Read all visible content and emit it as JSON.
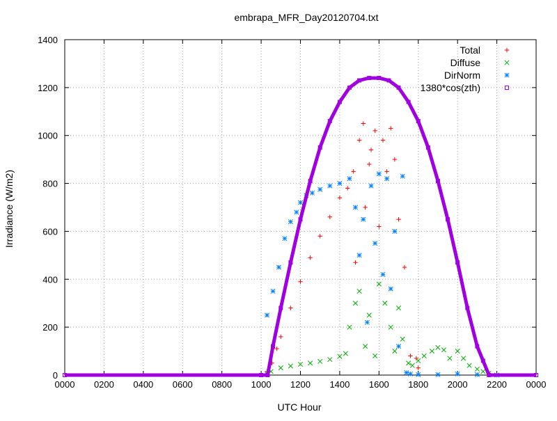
{
  "chart_data": {
    "type": "scatter",
    "title": "embrapa_MFR_Day20120704.txt",
    "xlabel": "UTC Hour",
    "ylabel": "Irradiance (W/m2)",
    "x_ticks": [
      "0000",
      "0200",
      "0400",
      "0600",
      "0800",
      "1000",
      "1200",
      "1400",
      "1600",
      "1800",
      "2000",
      "2200",
      "0000"
    ],
    "y_ticks": [
      "0",
      "200",
      "400",
      "600",
      "800",
      "1000",
      "1200",
      "1400"
    ],
    "xlim": [
      0,
      24
    ],
    "ylim": [
      0,
      1400
    ],
    "grid": true,
    "legend_position": "top-right",
    "series": [
      {
        "name": "Total",
        "marker": "+",
        "color": "#ff0000",
        "points": [
          [
            10.3,
            15
          ],
          [
            10.55,
            50
          ],
          [
            10.8,
            110
          ],
          [
            11.0,
            160
          ],
          [
            11.5,
            280
          ],
          [
            12.0,
            390
          ],
          [
            12.5,
            490
          ],
          [
            13.0,
            580
          ],
          [
            13.5,
            660
          ],
          [
            14.0,
            740
          ],
          [
            14.4,
            780
          ],
          [
            14.7,
            850
          ],
          [
            14.8,
            470
          ],
          [
            15.0,
            980
          ],
          [
            15.2,
            1050
          ],
          [
            15.3,
            700
          ],
          [
            15.5,
            880
          ],
          [
            15.6,
            940
          ],
          [
            15.8,
            1020
          ],
          [
            16.0,
            620
          ],
          [
            16.2,
            980
          ],
          [
            16.4,
            850
          ],
          [
            16.6,
            1030
          ],
          [
            16.8,
            900
          ],
          [
            17.0,
            650
          ],
          [
            17.3,
            450
          ],
          [
            17.6,
            80
          ],
          [
            17.9,
            70
          ],
          [
            18.0,
            30
          ]
        ]
      },
      {
        "name": "Diffuse",
        "marker": "x",
        "color": "#00aa00",
        "points": [
          [
            10.3,
            5
          ],
          [
            10.5,
            15
          ],
          [
            11.0,
            30
          ],
          [
            11.5,
            38
          ],
          [
            12.0,
            45
          ],
          [
            12.5,
            50
          ],
          [
            13.0,
            57
          ],
          [
            13.5,
            65
          ],
          [
            14.0,
            78
          ],
          [
            14.3,
            90
          ],
          [
            14.5,
            200
          ],
          [
            14.8,
            300
          ],
          [
            15.0,
            350
          ],
          [
            15.3,
            120
          ],
          [
            15.5,
            250
          ],
          [
            15.8,
            80
          ],
          [
            16.0,
            380
          ],
          [
            16.3,
            300
          ],
          [
            16.6,
            200
          ],
          [
            16.8,
            100
          ],
          [
            17.0,
            280
          ],
          [
            17.2,
            150
          ],
          [
            17.5,
            50
          ],
          [
            17.7,
            40
          ],
          [
            18.0,
            60
          ],
          [
            18.3,
            80
          ],
          [
            18.7,
            100
          ],
          [
            19.0,
            115
          ],
          [
            19.3,
            105
          ],
          [
            19.6,
            70
          ],
          [
            20.0,
            100
          ],
          [
            20.3,
            70
          ],
          [
            20.6,
            40
          ],
          [
            21.0,
            25
          ],
          [
            21.3,
            15
          ],
          [
            21.6,
            8
          ],
          [
            22.0,
            0
          ]
        ]
      },
      {
        "name": "DirNorm",
        "marker": "*",
        "color": "#0080ff",
        "points": [
          [
            10.3,
            250
          ],
          [
            10.6,
            350
          ],
          [
            10.9,
            450
          ],
          [
            11.2,
            570
          ],
          [
            11.5,
            640
          ],
          [
            11.8,
            680
          ],
          [
            12.0,
            720
          ],
          [
            12.3,
            750
          ],
          [
            12.6,
            760
          ],
          [
            13.0,
            775
          ],
          [
            13.5,
            790
          ],
          [
            14.0,
            800
          ],
          [
            14.5,
            820
          ],
          [
            14.8,
            700
          ],
          [
            15.0,
            500
          ],
          [
            15.2,
            650
          ],
          [
            15.4,
            220
          ],
          [
            15.6,
            790
          ],
          [
            15.8,
            550
          ],
          [
            16.0,
            840
          ],
          [
            16.2,
            420
          ],
          [
            16.4,
            820
          ],
          [
            16.6,
            360
          ],
          [
            16.8,
            600
          ],
          [
            17.0,
            120
          ],
          [
            17.2,
            830
          ],
          [
            17.4,
            10
          ],
          [
            17.6,
            5
          ],
          [
            18.0,
            2
          ],
          [
            19.0,
            2
          ],
          [
            20.0,
            5
          ],
          [
            21.0,
            2
          ],
          [
            22.0,
            0
          ]
        ]
      },
      {
        "name": "1380*cos(zth)",
        "marker": "square",
        "color": "#a000e0",
        "points": [
          [
            0,
            0
          ],
          [
            10.0,
            0
          ],
          [
            10.33,
            0
          ],
          [
            10.6,
            120
          ],
          [
            11.0,
            280
          ],
          [
            11.5,
            470
          ],
          [
            12.0,
            650
          ],
          [
            12.5,
            810
          ],
          [
            13.0,
            950
          ],
          [
            13.5,
            1060
          ],
          [
            14.0,
            1140
          ],
          [
            14.5,
            1200
          ],
          [
            15.0,
            1230
          ],
          [
            15.5,
            1240
          ],
          [
            16.0,
            1240
          ],
          [
            16.5,
            1230
          ],
          [
            17.0,
            1200
          ],
          [
            17.5,
            1140
          ],
          [
            18.0,
            1060
          ],
          [
            18.5,
            950
          ],
          [
            19.0,
            810
          ],
          [
            19.5,
            650
          ],
          [
            20.0,
            470
          ],
          [
            20.5,
            280
          ],
          [
            21.0,
            120
          ],
          [
            21.3,
            60
          ],
          [
            21.6,
            0
          ],
          [
            24.0,
            0
          ]
        ]
      }
    ]
  }
}
